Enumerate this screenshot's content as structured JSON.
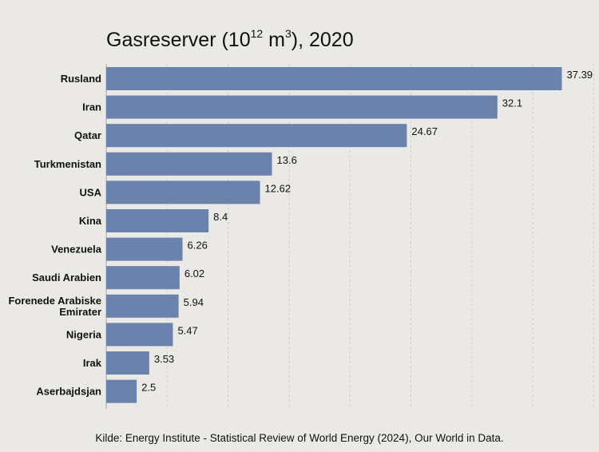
{
  "title": {
    "main": "Gasreserver (10",
    "sup1": "12",
    "mid": " m",
    "sup2": "3",
    "end": "), 2020"
  },
  "source": "Kilde: Energy Institute - Statistical Review of World Energy (2024), Our World in Data.",
  "chart_data": {
    "type": "bar",
    "orientation": "horizontal",
    "title": "Gasreserver (10^12 m^3), 2020",
    "categories": [
      [
        "Rusland"
      ],
      [
        "Iran"
      ],
      [
        "Qatar"
      ],
      [
        "Turkmenistan"
      ],
      [
        "USA"
      ],
      [
        "Kina"
      ],
      [
        "Venezuela"
      ],
      [
        "Saudi Arabien"
      ],
      [
        "Forenede Arabiske",
        "Emirater"
      ],
      [
        "Nigeria"
      ],
      [
        "Irak"
      ],
      [
        "Aserbajdsjan"
      ]
    ],
    "values": [
      37.39,
      32.1,
      24.67,
      13.6,
      12.62,
      8.4,
      6.26,
      6.02,
      5.94,
      5.47,
      3.53,
      2.5
    ],
    "value_labels": [
      "37.39",
      "32.1",
      "24.67",
      "13.6",
      "12.62",
      "8.4",
      "6.26",
      "6.02",
      "5.94",
      "5.47",
      "3.53",
      "2.5"
    ],
    "xlim": [
      0,
      40
    ],
    "gridlines": [
      0,
      5,
      10,
      15,
      20,
      25,
      30,
      35,
      40
    ],
    "grid": true,
    "bar_color": "#6b82ad",
    "background": "#ebe9e5"
  }
}
